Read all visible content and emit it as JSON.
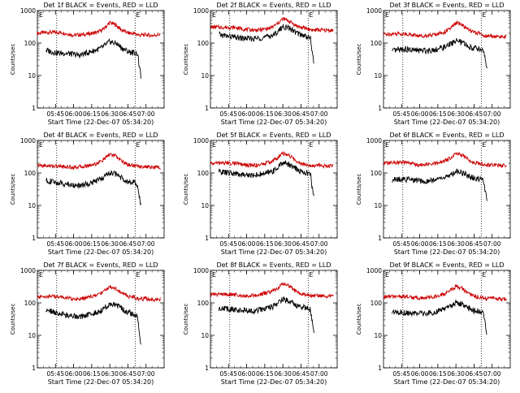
{
  "colors": {
    "events": "#000000",
    "lld": "#cc0000",
    "axis": "#000000"
  },
  "x_tick_labels": [
    "05:45",
    "06:00",
    "06:15",
    "06:30",
    "06:45",
    "07:00"
  ],
  "x_tick_minutes": [
    345,
    360,
    375,
    390,
    405,
    420
  ],
  "xlim_minutes": [
    330,
    435
  ],
  "y_tick_labels": [
    "1",
    "10",
    "100",
    "1000"
  ],
  "y_tick_values": [
    1,
    10,
    100,
    1000
  ],
  "ylim": [
    1,
    1000
  ],
  "yscale": "log",
  "ylabel": "Counts/sec",
  "xlabel": "Start Time (22-Dec-07 05:34:20)",
  "marker_label": "E",
  "chart_data": [
    {
      "type": "line",
      "title": "Det 1f BLACK = Events, RED = LLD",
      "xlabel": "Start Time (22-Dec-07 05:34:20)",
      "ylabel": "Counts/sec",
      "yscale": "log",
      "ylim": [
        1,
        1000
      ],
      "markers_minutes": [
        346,
        411
      ],
      "series": [
        {
          "name": "LLD",
          "color": "#cc0000",
          "x": [
            330,
            340,
            350,
            360,
            370,
            380,
            385,
            390,
            395,
            400,
            405,
            410,
            415,
            420,
            425,
            432
          ],
          "y": [
            200,
            215,
            210,
            175,
            185,
            215,
            270,
            430,
            360,
            250,
            205,
            195,
            175,
            180,
            170,
            185
          ]
        },
        {
          "name": "Events",
          "color": "#000000",
          "x": [
            337,
            345,
            355,
            365,
            375,
            383,
            390,
            396,
            400,
            405,
            410,
            413,
            414,
            416
          ],
          "y": [
            60,
            50,
            48,
            42,
            55,
            70,
            110,
            95,
            70,
            55,
            50,
            48,
            25,
            8
          ]
        }
      ]
    },
    {
      "type": "line",
      "title": "Det 2f BLACK = Events, RED = LLD",
      "xlabel": "Start Time (22-Dec-07 05:34:20)",
      "ylabel": "Counts/sec",
      "yscale": "log",
      "ylim": [
        1,
        1000
      ],
      "markers_minutes": [
        346,
        411
      ],
      "series": [
        {
          "name": "LLD",
          "color": "#cc0000",
          "x": [
            330,
            340,
            350,
            360,
            370,
            380,
            385,
            390,
            395,
            400,
            405,
            410,
            415,
            420,
            425,
            432
          ],
          "y": [
            310,
            305,
            300,
            260,
            250,
            290,
            380,
            560,
            480,
            360,
            300,
            280,
            250,
            255,
            245,
            250
          ]
        },
        {
          "name": "Events",
          "color": "#000000",
          "x": [
            337,
            345,
            355,
            365,
            375,
            383,
            390,
            396,
            400,
            405,
            410,
            413,
            414,
            416
          ],
          "y": [
            180,
            160,
            140,
            135,
            150,
            180,
            320,
            280,
            220,
            180,
            160,
            140,
            60,
            20
          ]
        }
      ]
    },
    {
      "type": "line",
      "title": "Det 3f BLACK = Events, RED = LLD",
      "xlabel": "Start Time (22-Dec-07 05:34:20)",
      "ylabel": "Counts/sec",
      "yscale": "log",
      "ylim": [
        1,
        1000
      ],
      "markers_minutes": [
        346,
        411
      ],
      "series": [
        {
          "name": "LLD",
          "color": "#cc0000",
          "x": [
            330,
            340,
            350,
            360,
            370,
            380,
            385,
            390,
            395,
            400,
            405,
            410,
            415,
            420,
            425,
            432
          ],
          "y": [
            185,
            195,
            190,
            165,
            175,
            215,
            270,
            420,
            370,
            260,
            210,
            195,
            160,
            165,
            155,
            160
          ]
        },
        {
          "name": "Events",
          "color": "#000000",
          "x": [
            337,
            345,
            355,
            365,
            375,
            383,
            390,
            396,
            400,
            405,
            410,
            413,
            414,
            416
          ],
          "y": [
            55,
            65,
            60,
            58,
            65,
            80,
            120,
            100,
            80,
            70,
            65,
            60,
            35,
            12
          ]
        }
      ]
    },
    {
      "type": "line",
      "title": "Det 4f BLACK = Events, RED = LLD",
      "xlabel": "Start Time (22-Dec-07 05:34:20)",
      "ylabel": "Counts/sec",
      "yscale": "log",
      "ylim": [
        1,
        1000
      ],
      "markers_minutes": [
        346,
        411
      ],
      "series": [
        {
          "name": "LLD",
          "color": "#cc0000",
          "x": [
            330,
            340,
            350,
            360,
            370,
            380,
            385,
            390,
            395,
            400,
            405,
            410,
            415,
            420,
            425,
            432
          ],
          "y": [
            170,
            165,
            160,
            150,
            160,
            200,
            260,
            380,
            330,
            230,
            180,
            170,
            160,
            155,
            150,
            145
          ]
        },
        {
          "name": "Events",
          "color": "#000000",
          "x": [
            337,
            345,
            355,
            365,
            375,
            383,
            390,
            396,
            400,
            405,
            410,
            413,
            414,
            416
          ],
          "y": [
            60,
            50,
            45,
            40,
            50,
            65,
            100,
            90,
            70,
            55,
            50,
            40,
            20,
            10
          ]
        }
      ]
    },
    {
      "type": "line",
      "title": "Det 5f BLACK = Events, RED = LLD",
      "xlabel": "Start Time (22-Dec-07 05:34:20)",
      "ylabel": "Counts/sec",
      "yscale": "log",
      "ylim": [
        1,
        1000
      ],
      "markers_minutes": [
        346,
        411
      ],
      "series": [
        {
          "name": "LLD",
          "color": "#cc0000",
          "x": [
            330,
            340,
            350,
            360,
            370,
            380,
            385,
            390,
            395,
            400,
            405,
            410,
            415,
            420,
            425,
            432
          ],
          "y": [
            195,
            205,
            200,
            170,
            175,
            220,
            280,
            400,
            350,
            250,
            200,
            185,
            170,
            175,
            165,
            170
          ]
        },
        {
          "name": "Events",
          "color": "#000000",
          "x": [
            337,
            345,
            355,
            365,
            375,
            383,
            390,
            396,
            400,
            405,
            410,
            413,
            414,
            416
          ],
          "y": [
            110,
            100,
            90,
            85,
            95,
            120,
            210,
            180,
            140,
            110,
            100,
            90,
            40,
            15
          ]
        }
      ]
    },
    {
      "type": "line",
      "title": "Det 6f BLACK = Events, RED = LLD",
      "xlabel": "Start Time (22-Dec-07 05:34:20)",
      "ylabel": "Counts/sec",
      "yscale": "log",
      "ylim": [
        1,
        1000
      ],
      "markers_minutes": [
        346,
        411
      ],
      "series": [
        {
          "name": "LLD",
          "color": "#cc0000",
          "x": [
            330,
            340,
            350,
            360,
            370,
            380,
            385,
            390,
            395,
            400,
            405,
            410,
            415,
            420,
            425,
            432
          ],
          "y": [
            200,
            210,
            205,
            175,
            185,
            225,
            285,
            410,
            360,
            260,
            210,
            195,
            175,
            180,
            170,
            175
          ]
        },
        {
          "name": "Events",
          "color": "#000000",
          "x": [
            337,
            345,
            355,
            365,
            375,
            383,
            390,
            396,
            400,
            405,
            410,
            413,
            414,
            416
          ],
          "y": [
            60,
            65,
            60,
            55,
            65,
            75,
            115,
            100,
            80,
            70,
            65,
            55,
            30,
            12
          ]
        }
      ]
    },
    {
      "type": "line",
      "title": "Det 7f BLACK = Events, RED = LLD",
      "xlabel": "Start Time (22-Dec-07 05:34:20)",
      "ylabel": "Counts/sec",
      "yscale": "log",
      "ylim": [
        1,
        1000
      ],
      "markers_minutes": [
        346,
        411
      ],
      "series": [
        {
          "name": "LLD",
          "color": "#cc0000",
          "x": [
            330,
            340,
            350,
            360,
            370,
            380,
            385,
            390,
            395,
            400,
            405,
            410,
            415,
            420,
            425,
            432
          ],
          "y": [
            150,
            160,
            155,
            130,
            140,
            175,
            230,
            320,
            280,
            200,
            160,
            150,
            130,
            135,
            125,
            130
          ]
        },
        {
          "name": "Events",
          "color": "#000000",
          "x": [
            337,
            345,
            355,
            365,
            375,
            383,
            390,
            396,
            400,
            405,
            410,
            413,
            414,
            416
          ],
          "y": [
            60,
            50,
            40,
            38,
            45,
            60,
            95,
            85,
            65,
            50,
            45,
            40,
            15,
            5
          ]
        }
      ]
    },
    {
      "type": "line",
      "title": "Det 8f BLACK = Events, RED = LLD",
      "xlabel": "Start Time (22-Dec-07 05:34:20)",
      "ylabel": "Counts/sec",
      "yscale": "log",
      "ylim": [
        1,
        1000
      ],
      "markers_minutes": [
        346,
        411
      ],
      "series": [
        {
          "name": "LLD",
          "color": "#cc0000",
          "x": [
            330,
            340,
            350,
            360,
            370,
            380,
            385,
            390,
            395,
            400,
            405,
            410,
            415,
            420,
            425,
            432
          ],
          "y": [
            180,
            185,
            180,
            165,
            175,
            215,
            270,
            390,
            340,
            240,
            190,
            180,
            165,
            170,
            160,
            165
          ]
        },
        {
          "name": "Events",
          "color": "#000000",
          "x": [
            337,
            345,
            355,
            365,
            375,
            383,
            390,
            396,
            400,
            405,
            410,
            413,
            414,
            416
          ],
          "y": [
            70,
            65,
            60,
            55,
            65,
            80,
            130,
            115,
            90,
            75,
            70,
            60,
            30,
            12
          ]
        }
      ]
    },
    {
      "type": "line",
      "title": "Det 9f BLACK = Events, RED = LLD",
      "xlabel": "Start Time (22-Dec-07 05:34:20)",
      "ylabel": "Counts/sec",
      "yscale": "log",
      "ylim": [
        1,
        1000
      ],
      "markers_minutes": [
        346,
        411
      ],
      "series": [
        {
          "name": "LLD",
          "color": "#cc0000",
          "x": [
            330,
            340,
            350,
            360,
            370,
            380,
            385,
            390,
            395,
            400,
            405,
            410,
            415,
            420,
            425,
            432
          ],
          "y": [
            150,
            160,
            155,
            140,
            150,
            185,
            240,
            320,
            280,
            200,
            160,
            150,
            135,
            140,
            130,
            135
          ]
        },
        {
          "name": "Events",
          "color": "#000000",
          "x": [
            337,
            345,
            355,
            365,
            375,
            383,
            390,
            396,
            400,
            405,
            410,
            413,
            414,
            416
          ],
          "y": [
            55,
            50,
            48,
            45,
            55,
            70,
            100,
            90,
            70,
            58,
            55,
            48,
            25,
            10
          ]
        }
      ]
    }
  ]
}
